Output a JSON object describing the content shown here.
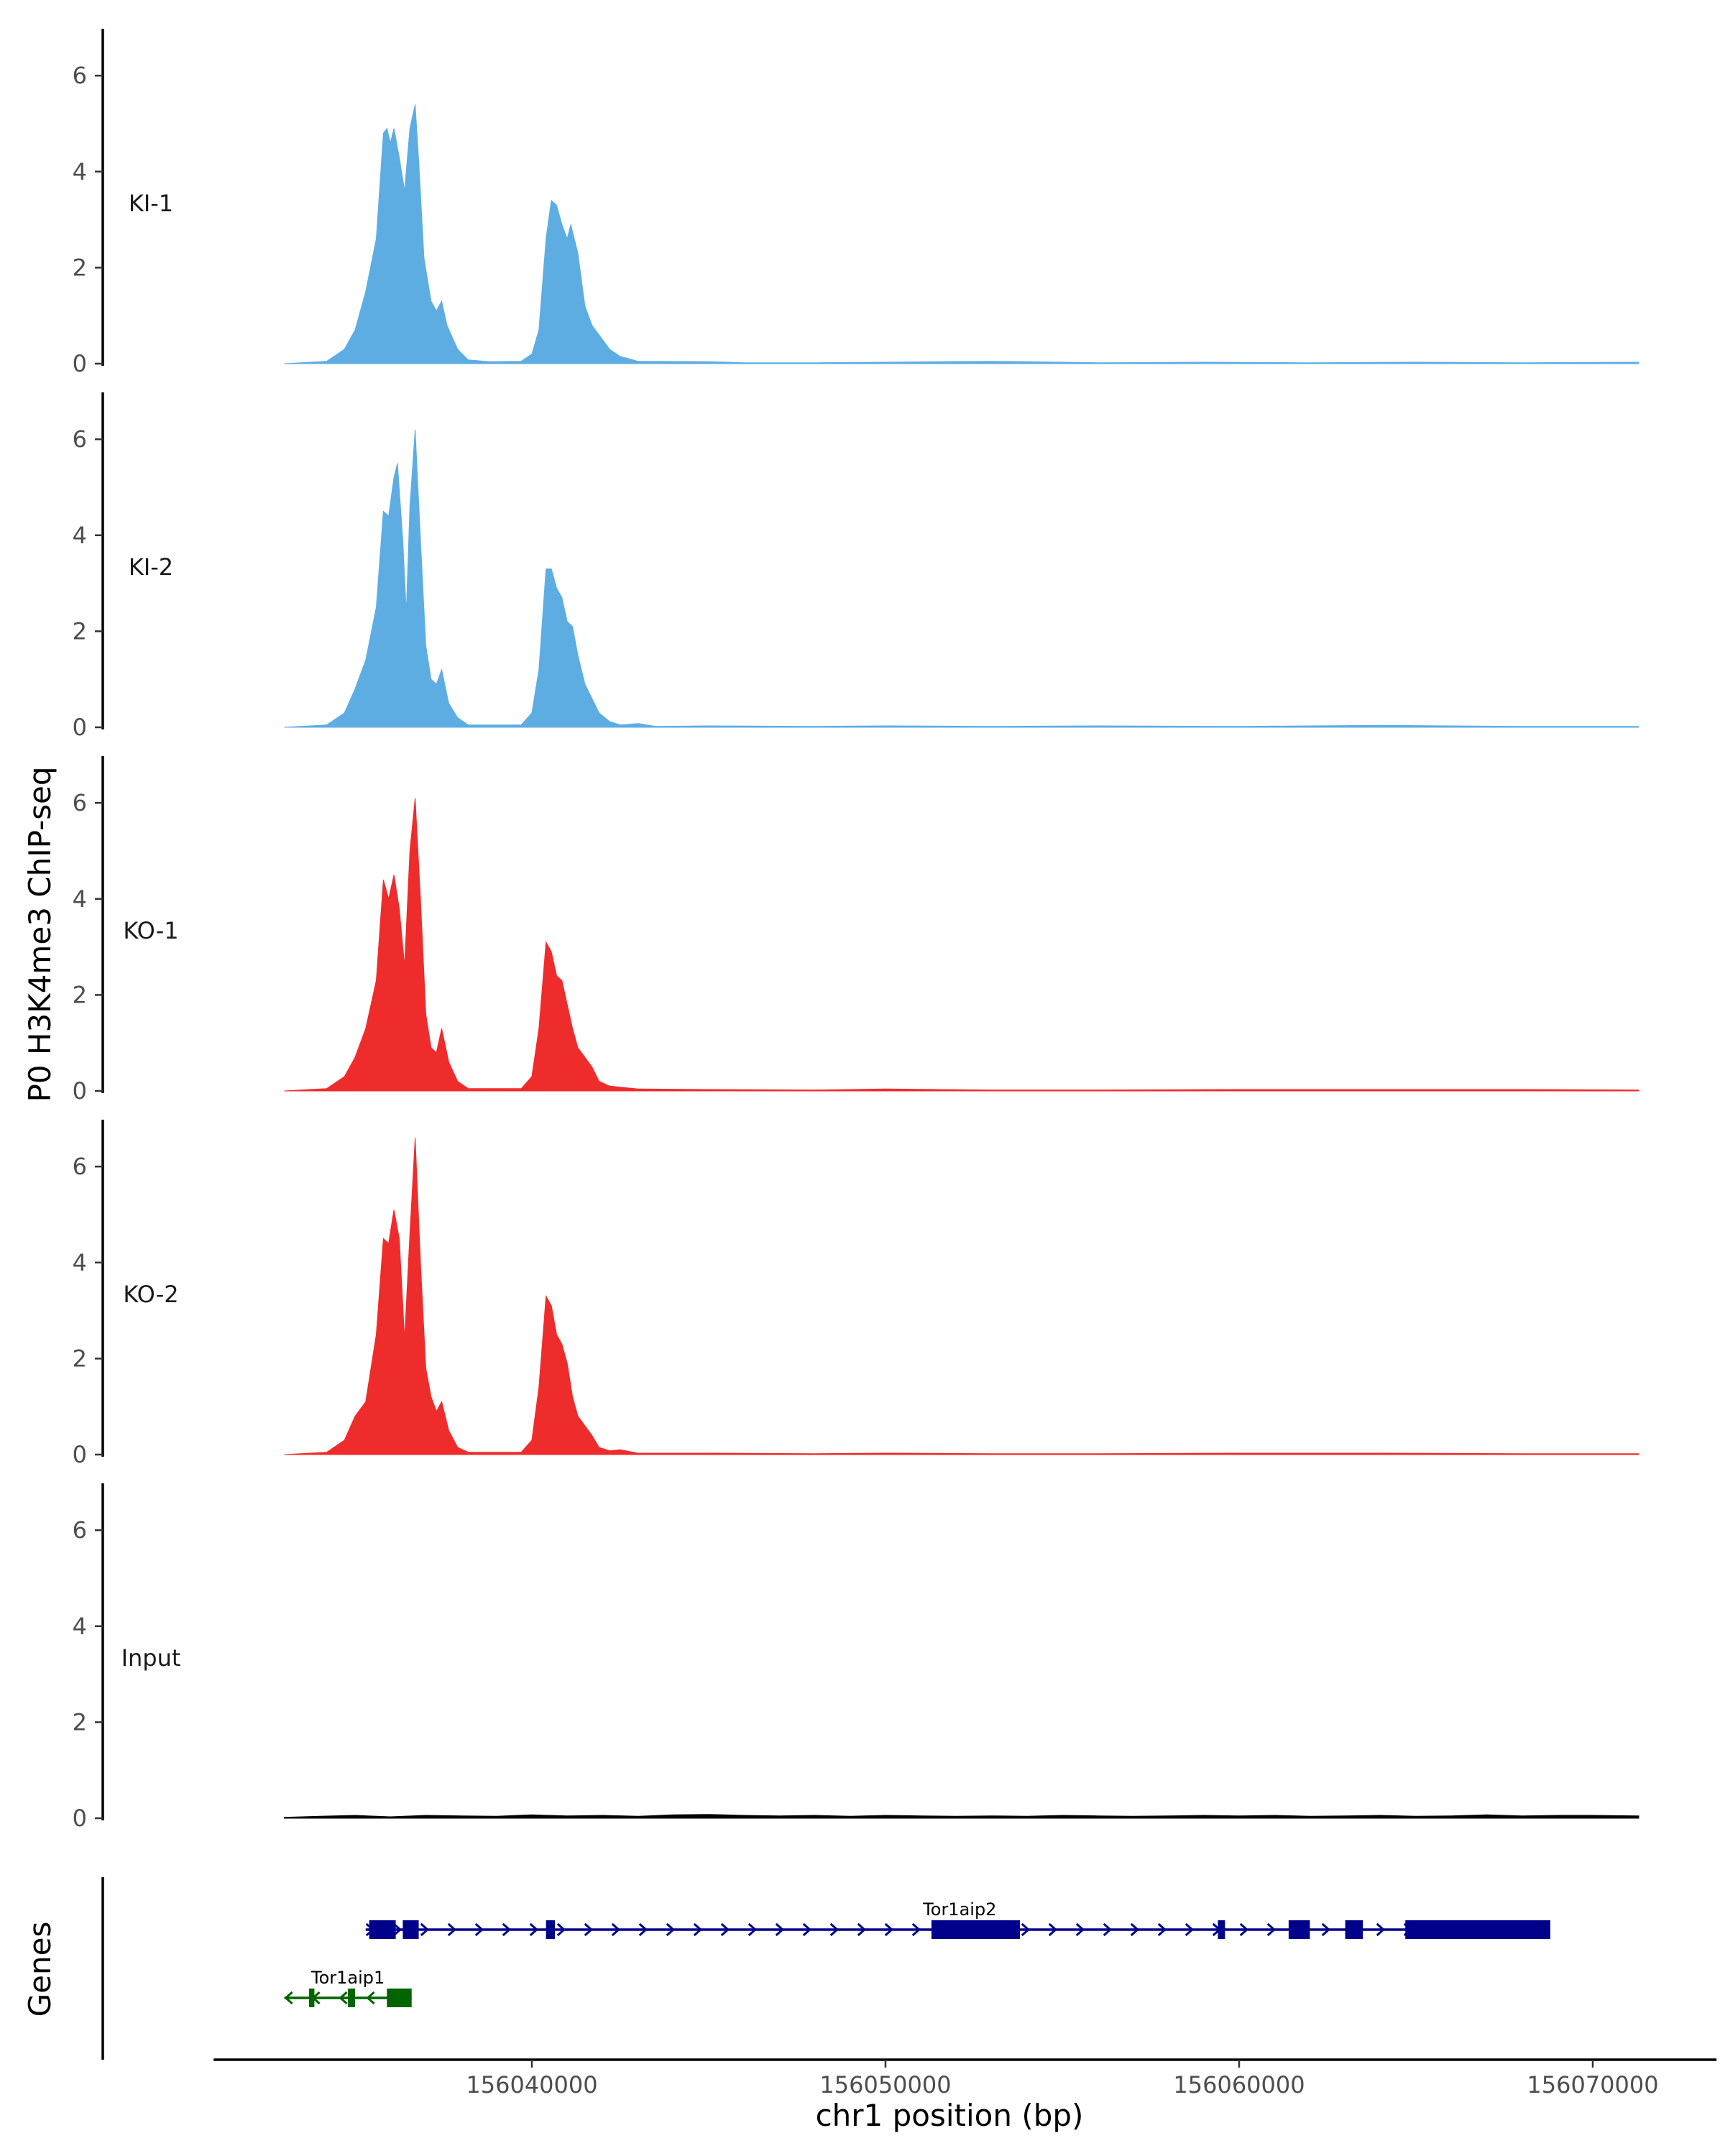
{
  "chart_data": {
    "type": "area",
    "ylabel": "P0 H3K4me3 ChIP-seq",
    "xlabel": "chr1 position (bp)",
    "genes_label": "Genes",
    "xlim": [
      156031000,
      156073500
    ],
    "x_ticks": [
      156040000,
      156050000,
      156060000,
      156070000
    ],
    "x_tick_labels": [
      "156040000",
      "156050000",
      "156060000",
      "156070000"
    ],
    "ylim": [
      0,
      6.9
    ],
    "y_ticks": [
      0,
      2,
      4,
      6
    ],
    "y_tick_labels": [
      "0",
      "2",
      "4",
      "6"
    ],
    "colors": {
      "KI": "#5dade2",
      "KO": "#ee2c2c",
      "Input": "#000000",
      "Tor1aip2": "#00008b",
      "Tor1aip1": "#006400"
    },
    "series": [
      {
        "name": "KI-1",
        "color": "#5dade2",
        "points": [
          [
            156033000,
            0
          ],
          [
            156034200,
            0.05
          ],
          [
            156034700,
            0.3
          ],
          [
            156035000,
            0.7
          ],
          [
            156035300,
            1.5
          ],
          [
            156035600,
            2.6
          ],
          [
            156035800,
            4.8
          ],
          [
            156035900,
            4.9
          ],
          [
            156036000,
            4.6
          ],
          [
            156036100,
            4.9
          ],
          [
            156036250,
            4.3
          ],
          [
            156036400,
            3.6
          ],
          [
            156036550,
            4.9
          ],
          [
            156036700,
            5.4
          ],
          [
            156036800,
            4.2
          ],
          [
            156036950,
            2.2
          ],
          [
            156037150,
            1.3
          ],
          [
            156037300,
            1.1
          ],
          [
            156037450,
            1.3
          ],
          [
            156037600,
            0.8
          ],
          [
            156037900,
            0.3
          ],
          [
            156038200,
            0.08
          ],
          [
            156038800,
            0.04
          ],
          [
            156039700,
            0.05
          ],
          [
            156040000,
            0.2
          ],
          [
            156040200,
            0.7
          ],
          [
            156040400,
            2.6
          ],
          [
            156040550,
            3.4
          ],
          [
            156040700,
            3.3
          ],
          [
            156040850,
            2.9
          ],
          [
            156041000,
            2.6
          ],
          [
            156041100,
            2.9
          ],
          [
            156041300,
            2.3
          ],
          [
            156041500,
            1.2
          ],
          [
            156041700,
            0.8
          ],
          [
            156041900,
            0.6
          ],
          [
            156042200,
            0.3
          ],
          [
            156042500,
            0.15
          ],
          [
            156043000,
            0.05
          ],
          [
            156045000,
            0.04
          ],
          [
            156046000,
            0.02
          ],
          [
            156048000,
            0.02
          ],
          [
            156050000,
            0.03
          ],
          [
            156053000,
            0.05
          ],
          [
            156056000,
            0.02
          ],
          [
            156059000,
            0.03
          ],
          [
            156062000,
            0.02
          ],
          [
            156065000,
            0.03
          ],
          [
            156068000,
            0.02
          ],
          [
            156071300,
            0.03
          ]
        ]
      },
      {
        "name": "KI-2",
        "color": "#5dade2",
        "points": [
          [
            156033000,
            0
          ],
          [
            156034200,
            0.05
          ],
          [
            156034700,
            0.3
          ],
          [
            156035000,
            0.8
          ],
          [
            156035300,
            1.4
          ],
          [
            156035600,
            2.5
          ],
          [
            156035800,
            4.5
          ],
          [
            156035950,
            4.4
          ],
          [
            156036100,
            5.2
          ],
          [
            156036200,
            5.5
          ],
          [
            156036350,
            3.9
          ],
          [
            156036450,
            2.4
          ],
          [
            156036550,
            4.6
          ],
          [
            156036700,
            6.2
          ],
          [
            156036850,
            3.9
          ],
          [
            156037000,
            1.7
          ],
          [
            156037150,
            1.0
          ],
          [
            156037300,
            0.9
          ],
          [
            156037450,
            1.2
          ],
          [
            156037650,
            0.5
          ],
          [
            156037900,
            0.2
          ],
          [
            156038200,
            0.05
          ],
          [
            156039700,
            0.05
          ],
          [
            156040000,
            0.3
          ],
          [
            156040200,
            1.2
          ],
          [
            156040400,
            3.3
          ],
          [
            156040550,
            3.3
          ],
          [
            156040700,
            2.9
          ],
          [
            156040850,
            2.7
          ],
          [
            156041000,
            2.2
          ],
          [
            156041150,
            2.1
          ],
          [
            156041300,
            1.5
          ],
          [
            156041500,
            0.9
          ],
          [
            156041700,
            0.6
          ],
          [
            156041900,
            0.3
          ],
          [
            156042200,
            0.12
          ],
          [
            156042500,
            0.05
          ],
          [
            156043000,
            0.08
          ],
          [
            156043500,
            0.02
          ],
          [
            156045000,
            0.03
          ],
          [
            156048000,
            0.02
          ],
          [
            156050000,
            0.03
          ],
          [
            156053000,
            0.02
          ],
          [
            156056000,
            0.03
          ],
          [
            156060000,
            0.02
          ],
          [
            156064000,
            0.04
          ],
          [
            156068000,
            0.02
          ],
          [
            156071300,
            0.02
          ]
        ]
      },
      {
        "name": "KO-1",
        "color": "#ee2c2c",
        "points": [
          [
            156033000,
            0
          ],
          [
            156034200,
            0.05
          ],
          [
            156034700,
            0.3
          ],
          [
            156035000,
            0.7
          ],
          [
            156035300,
            1.3
          ],
          [
            156035600,
            2.3
          ],
          [
            156035800,
            4.4
          ],
          [
            156035950,
            4.0
          ],
          [
            156036100,
            4.5
          ],
          [
            156036250,
            3.8
          ],
          [
            156036400,
            2.6
          ],
          [
            156036550,
            5.0
          ],
          [
            156036700,
            6.1
          ],
          [
            156036850,
            4.0
          ],
          [
            156037000,
            1.6
          ],
          [
            156037150,
            0.9
          ],
          [
            156037300,
            0.8
          ],
          [
            156037450,
            1.3
          ],
          [
            156037650,
            0.6
          ],
          [
            156037900,
            0.2
          ],
          [
            156038200,
            0.05
          ],
          [
            156039700,
            0.05
          ],
          [
            156040000,
            0.3
          ],
          [
            156040200,
            1.3
          ],
          [
            156040400,
            3.1
          ],
          [
            156040550,
            2.9
          ],
          [
            156040700,
            2.4
          ],
          [
            156040850,
            2.3
          ],
          [
            156041000,
            1.8
          ],
          [
            156041150,
            1.3
          ],
          [
            156041300,
            0.9
          ],
          [
            156041500,
            0.7
          ],
          [
            156041700,
            0.5
          ],
          [
            156041900,
            0.2
          ],
          [
            156042200,
            0.1
          ],
          [
            156042500,
            0.08
          ],
          [
            156043000,
            0.04
          ],
          [
            156045000,
            0.03
          ],
          [
            156048000,
            0.02
          ],
          [
            156050000,
            0.04
          ],
          [
            156053000,
            0.02
          ],
          [
            156056000,
            0.02
          ],
          [
            156060000,
            0.03
          ],
          [
            156064000,
            0.03
          ],
          [
            156068000,
            0.03
          ],
          [
            156071300,
            0.02
          ]
        ]
      },
      {
        "name": "KO-2",
        "color": "#ee2c2c",
        "points": [
          [
            156033000,
            0
          ],
          [
            156034200,
            0.05
          ],
          [
            156034700,
            0.3
          ],
          [
            156035000,
            0.8
          ],
          [
            156035300,
            1.1
          ],
          [
            156035600,
            2.5
          ],
          [
            156035800,
            4.5
          ],
          [
            156035950,
            4.4
          ],
          [
            156036100,
            5.1
          ],
          [
            156036250,
            4.5
          ],
          [
            156036400,
            2.4
          ],
          [
            156036550,
            4.6
          ],
          [
            156036700,
            6.6
          ],
          [
            156036850,
            4.0
          ],
          [
            156037000,
            1.8
          ],
          [
            156037150,
            1.2
          ],
          [
            156037300,
            0.9
          ],
          [
            156037450,
            1.1
          ],
          [
            156037650,
            0.5
          ],
          [
            156037900,
            0.15
          ],
          [
            156038200,
            0.05
          ],
          [
            156039700,
            0.05
          ],
          [
            156040000,
            0.3
          ],
          [
            156040200,
            1.4
          ],
          [
            156040400,
            3.3
          ],
          [
            156040550,
            3.1
          ],
          [
            156040700,
            2.5
          ],
          [
            156040850,
            2.3
          ],
          [
            156041000,
            1.9
          ],
          [
            156041150,
            1.2
          ],
          [
            156041300,
            0.8
          ],
          [
            156041500,
            0.6
          ],
          [
            156041700,
            0.4
          ],
          [
            156041900,
            0.15
          ],
          [
            156042200,
            0.08
          ],
          [
            156042500,
            0.1
          ],
          [
            156043000,
            0.03
          ],
          [
            156045000,
            0.03
          ],
          [
            156048000,
            0.02
          ],
          [
            156050000,
            0.03
          ],
          [
            156053000,
            0.02
          ],
          [
            156056000,
            0.02
          ],
          [
            156060000,
            0.03
          ],
          [
            156064000,
            0.03
          ],
          [
            156068000,
            0.02
          ],
          [
            156071300,
            0.02
          ]
        ]
      },
      {
        "name": "Input",
        "color": "#000000",
        "points": [
          [
            156033000,
            0.02
          ],
          [
            156034000,
            0.04
          ],
          [
            156035000,
            0.06
          ],
          [
            156036000,
            0.03
          ],
          [
            156037000,
            0.06
          ],
          [
            156038000,
            0.05
          ],
          [
            156039000,
            0.04
          ],
          [
            156040000,
            0.07
          ],
          [
            156041000,
            0.05
          ],
          [
            156042000,
            0.06
          ],
          [
            156043000,
            0.04
          ],
          [
            156044000,
            0.07
          ],
          [
            156045000,
            0.08
          ],
          [
            156046000,
            0.06
          ],
          [
            156047000,
            0.05
          ],
          [
            156048000,
            0.06
          ],
          [
            156049000,
            0.04
          ],
          [
            156050000,
            0.06
          ],
          [
            156051000,
            0.05
          ],
          [
            156052000,
            0.04
          ],
          [
            156053000,
            0.05
          ],
          [
            156054000,
            0.04
          ],
          [
            156055000,
            0.06
          ],
          [
            156056000,
            0.05
          ],
          [
            156057000,
            0.04
          ],
          [
            156058000,
            0.05
          ],
          [
            156059000,
            0.06
          ],
          [
            156060000,
            0.05
          ],
          [
            156061000,
            0.06
          ],
          [
            156062000,
            0.04
          ],
          [
            156063000,
            0.05
          ],
          [
            156064000,
            0.06
          ],
          [
            156065000,
            0.04
          ],
          [
            156066000,
            0.05
          ],
          [
            156067000,
            0.07
          ],
          [
            156068000,
            0.05
          ],
          [
            156069000,
            0.06
          ],
          [
            156070000,
            0.06
          ],
          [
            156071300,
            0.05
          ]
        ]
      }
    ],
    "genes": [
      {
        "name": "Tor1aip2",
        "strand": "+",
        "color": "#00008b",
        "start": 156035300,
        "end": 156068800,
        "exons": [
          [
            156035400,
            156036150
          ],
          [
            156036350,
            156036800
          ],
          [
            156040400,
            156040650
          ],
          [
            156051300,
            156053800
          ],
          [
            156059400,
            156059600
          ],
          [
            156061400,
            156062000
          ],
          [
            156063000,
            156063500
          ],
          [
            156064700,
            156068800
          ]
        ],
        "label_x": 156052100
      },
      {
        "name": "Tor1aip1",
        "strand": "-",
        "color": "#006400",
        "start": 156033000,
        "end": 156036600,
        "exons": [
          [
            156033700,
            156033850
          ],
          [
            156034800,
            156035000
          ],
          [
            156035900,
            156036600
          ]
        ],
        "label_x": 156034800
      }
    ]
  }
}
